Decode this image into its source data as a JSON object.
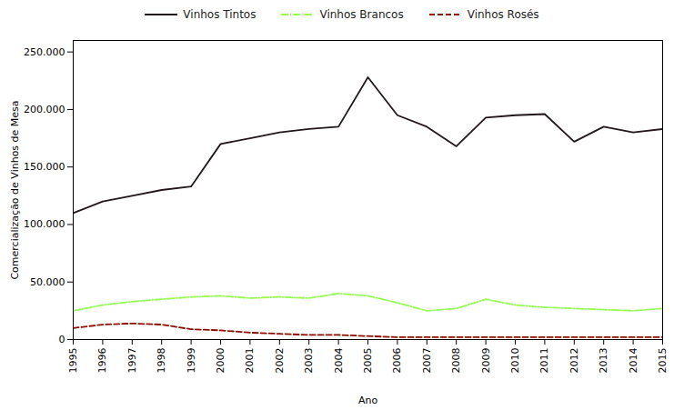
{
  "chart_data": {
    "type": "line",
    "x": [
      1995,
      1996,
      1997,
      1998,
      1999,
      2000,
      2001,
      2002,
      2003,
      2004,
      2005,
      2006,
      2007,
      2008,
      2009,
      2010,
      2011,
      2012,
      2013,
      2014,
      2015
    ],
    "xlabel": "Ano",
    "ylabel": "Comercialização de Vinhos de Mesa",
    "series": [
      {
        "name": "Vinhos Tintos",
        "line_style": "solid",
        "values": [
          110000,
          120000,
          125000,
          130000,
          133000,
          170000,
          175000,
          180000,
          183000,
          185000,
          228000,
          195000,
          185000,
          168000,
          193000,
          195000,
          196000,
          172000,
          185000,
          180000,
          183000
        ]
      },
      {
        "name": "Vinhos Brancos",
        "line_style": "dashdot",
        "values": [
          25000,
          30000,
          33000,
          35000,
          37000,
          38000,
          36000,
          37000,
          36000,
          40000,
          38000,
          32000,
          25000,
          27000,
          35000,
          30000,
          28000,
          27000,
          26000,
          25000,
          27000
        ]
      },
      {
        "name": "Vinhos Rosés",
        "line_style": "dashed",
        "values": [
          10000,
          13000,
          14000,
          13000,
          9000,
          8000,
          6000,
          5000,
          4000,
          4000,
          3000,
          2000,
          2000,
          2000,
          2000,
          2000,
          2000,
          2000,
          2000,
          2000,
          2000
        ]
      }
    ],
    "xlim": [
      1995,
      2015
    ],
    "xticks": [
      1995,
      1996,
      1997,
      1998,
      1999,
      2000,
      2001,
      2002,
      2003,
      2004,
      2005,
      2006,
      2007,
      2008,
      2009,
      2010,
      2011,
      2012,
      2013,
      2014,
      2015
    ],
    "ylim": [
      0,
      260000
    ],
    "yticks": [
      0,
      {
        "value": 50000,
        "label": "50.000"
      },
      {
        "value": 100000,
        "label": "100.000"
      },
      {
        "value": 150000,
        "label": "150.000"
      },
      {
        "value": 200000,
        "label": "200.000"
      },
      {
        "value": 250000,
        "label": "250.000"
      }
    ],
    "grid": false,
    "legend": "top"
  }
}
